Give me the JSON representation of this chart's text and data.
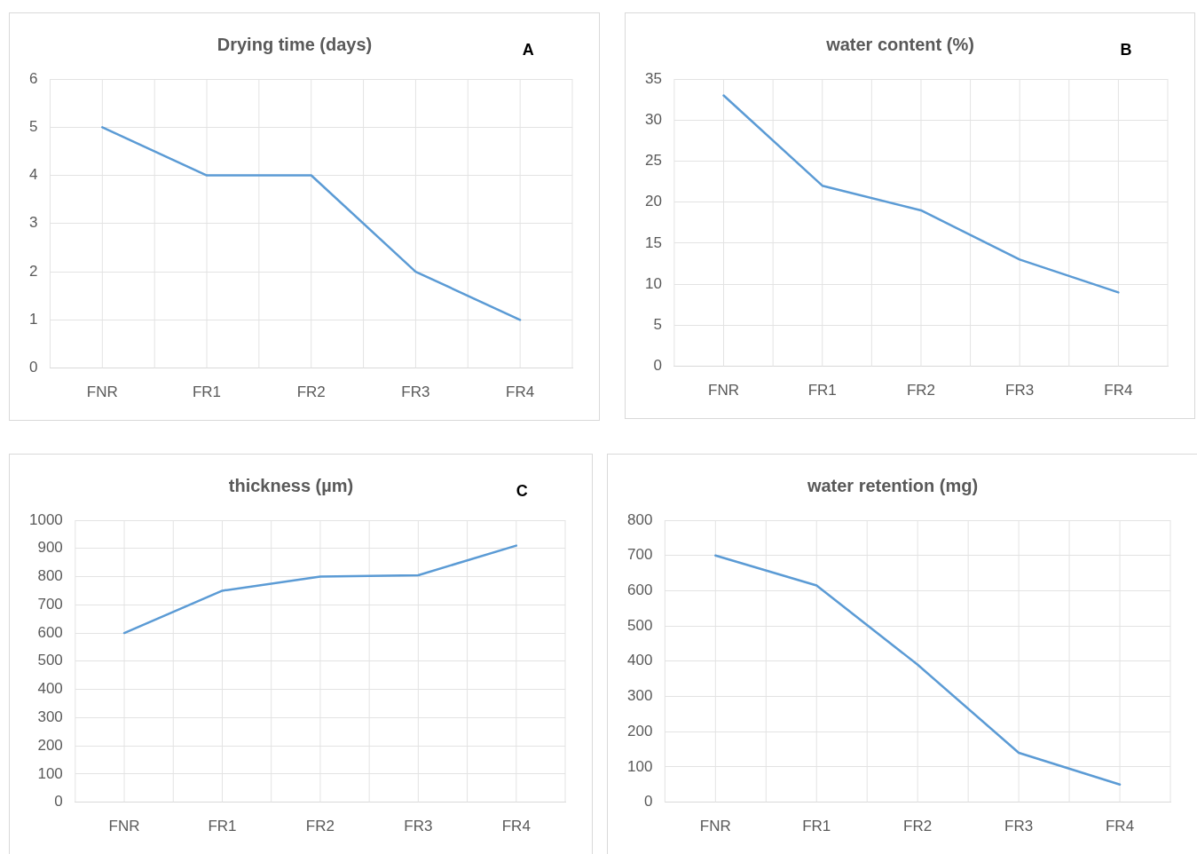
{
  "chart_data": [
    {
      "type": "line",
      "title": "Drying time (days)",
      "annotations": [
        "A"
      ],
      "categories": [
        "FNR",
        "FR1",
        "FR2",
        "FR3",
        "FR4"
      ],
      "series": [
        {
          "color": "#5b9bd5",
          "values": [
            5,
            4,
            4,
            2,
            1
          ]
        }
      ],
      "ylim": [
        0,
        6
      ],
      "yticks": [
        0,
        1,
        2,
        3,
        4,
        5,
        6
      ],
      "grid": true,
      "marker": "none",
      "line_style": "solid"
    },
    {
      "type": "line",
      "title": "water content (%)",
      "annotations": [
        "B"
      ],
      "categories": [
        "FNR",
        "FR1",
        "FR2",
        "FR3",
        "FR4"
      ],
      "series": [
        {
          "color": "#5b9bd5",
          "values": [
            33,
            22,
            19,
            13,
            9
          ]
        }
      ],
      "ylim": [
        0,
        35
      ],
      "yticks": [
        0,
        5,
        10,
        15,
        20,
        25,
        30,
        35
      ],
      "grid": true,
      "marker": "none",
      "line_style": "solid"
    },
    {
      "type": "line",
      "title": "thickness (µm)",
      "annotations": [
        "C"
      ],
      "categories": [
        "FNR",
        "FR1",
        "FR2",
        "FR3",
        "FR4"
      ],
      "series": [
        {
          "color": "#5b9bd5",
          "values": [
            600,
            750,
            800,
            805,
            910
          ]
        }
      ],
      "ylim": [
        0,
        1000
      ],
      "yticks": [
        0,
        100,
        200,
        300,
        400,
        500,
        600,
        700,
        800,
        900,
        1000
      ],
      "grid": true,
      "marker": "none",
      "line_style": "solid"
    },
    {
      "type": "line",
      "title": "water retention (mg)",
      "categories": [
        "FNR",
        "FR1",
        "FR2",
        "FR3",
        "FR4"
      ],
      "series": [
        {
          "color": "#5b9bd5",
          "values": [
            700,
            615,
            390,
            140,
            50
          ]
        }
      ],
      "ylim": [
        0,
        800
      ],
      "yticks": [
        0,
        100,
        200,
        300,
        400,
        500,
        600,
        700,
        800
      ],
      "grid": true,
      "marker": "none",
      "line_style": "solid"
    }
  ]
}
